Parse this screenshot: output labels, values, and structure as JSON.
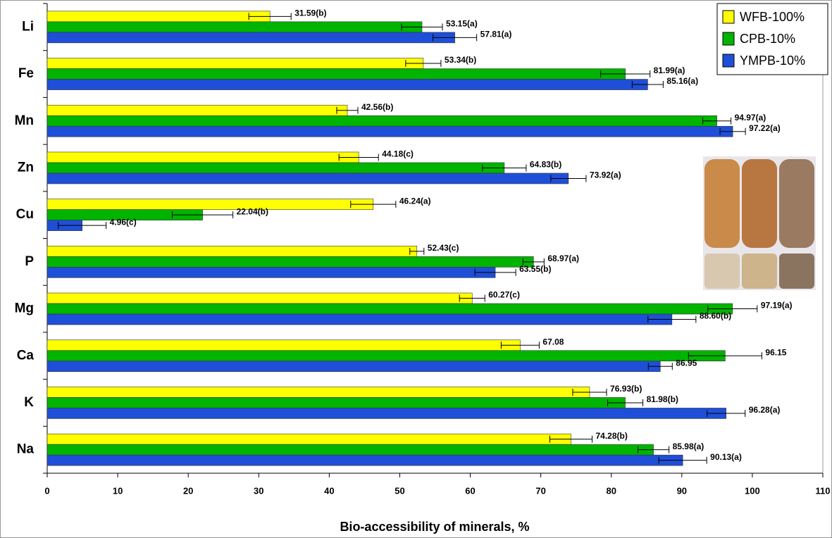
{
  "chart_data": {
    "type": "hbar",
    "xlabel": "Bio-accessibility of minerals, %",
    "categories": [
      "Li",
      "Fe",
      "Mn",
      "Zn",
      "Cu",
      "P",
      "Mg",
      "Ca",
      "K",
      "Na"
    ],
    "series": [
      {
        "name": "WFB-100%",
        "color": "#ffff00",
        "values": [
          31.59,
          53.34,
          42.56,
          44.18,
          46.24,
          52.43,
          60.27,
          67.08,
          76.93,
          74.28
        ],
        "errors": [
          3.0,
          2.5,
          1.5,
          2.8,
          3.2,
          1.0,
          1.8,
          2.7,
          2.4,
          3.0
        ],
        "value_labels": [
          "31.59(b)",
          "53.34(b)",
          "42.56(b)",
          "44.18(c)",
          "46.24(a)",
          "52.43(c)",
          "60.27(c)",
          "67.08",
          "76.93(b)",
          "74.28(b)"
        ]
      },
      {
        "name": "CPB-10%",
        "color": "#00b400",
        "values": [
          53.15,
          81.99,
          94.97,
          64.83,
          22.04,
          68.97,
          97.19,
          96.15,
          81.98,
          85.98
        ],
        "errors": [
          2.9,
          3.5,
          2.0,
          3.1,
          4.3,
          1.5,
          3.5,
          5.2,
          2.5,
          2.2
        ],
        "value_labels": [
          "53.15(a)",
          "81.99(a)",
          "94.97(a)",
          "64.83(b)",
          "22.04(b)",
          "68.97(a)",
          "97.19(a)",
          "96.15",
          "81.98(b)",
          "85.98(a)"
        ]
      },
      {
        "name": "YMPB-10%",
        "color": "#1f4fd8",
        "values": [
          57.81,
          85.16,
          97.22,
          73.92,
          4.96,
          63.55,
          88.6,
          86.95,
          96.28,
          90.13
        ],
        "errors": [
          3.1,
          2.2,
          1.8,
          2.5,
          3.4,
          2.9,
          3.4,
          1.7,
          2.7,
          3.4
        ],
        "value_labels": [
          "57.81(a)",
          "85.16(a)",
          "97.22(a)",
          "73.92(a)",
          "4.96(c)",
          "63.55(b)",
          "88.60(b)",
          "86.95",
          "96.28(a)",
          "90.13(a)"
        ]
      }
    ],
    "xlim": [
      0,
      110
    ],
    "xticks": [
      0,
      10,
      20,
      30,
      40,
      50,
      60,
      70,
      80,
      90,
      100,
      110
    ],
    "legend": "top-right"
  }
}
